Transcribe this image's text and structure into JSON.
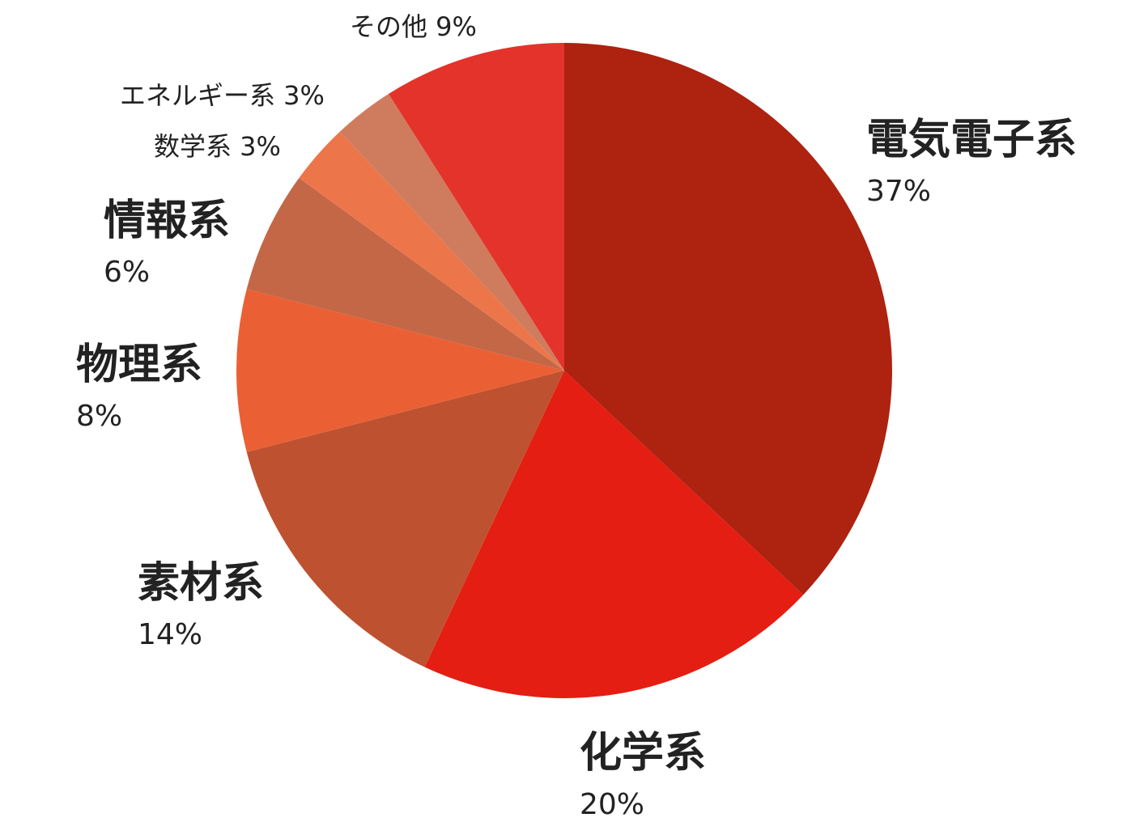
{
  "chart_data": {
    "type": "pie",
    "title": "",
    "start_angle_deg": 0,
    "direction": "clockwise",
    "slices": [
      {
        "label": "電気電子系",
        "value": 37,
        "value_label": "37%",
        "color": "#AE2210",
        "label_style": "large"
      },
      {
        "label": "化学系",
        "value": 20,
        "value_label": "20%",
        "color": "#E41E12",
        "label_style": "large"
      },
      {
        "label": "素材系",
        "value": 14,
        "value_label": "14%",
        "color": "#BE5230",
        "label_style": "large"
      },
      {
        "label": "物理系",
        "value": 8,
        "value_label": "8%",
        "color": "#EA6034",
        "label_style": "large"
      },
      {
        "label": "情報系",
        "value": 6,
        "value_label": "6%",
        "color": "#C36747",
        "label_style": "large"
      },
      {
        "label": "数学系",
        "value": 3,
        "value_label": "3%",
        "color": "#EC764A",
        "label_style": "inline"
      },
      {
        "label": "エネルギー系",
        "value": 3,
        "value_label": "3%",
        "color": "#CF7C5E",
        "label_style": "inline"
      },
      {
        "label": "その他",
        "value": 9,
        "value_label": "9%",
        "color": "#E4332A",
        "label_style": "inline"
      }
    ]
  }
}
